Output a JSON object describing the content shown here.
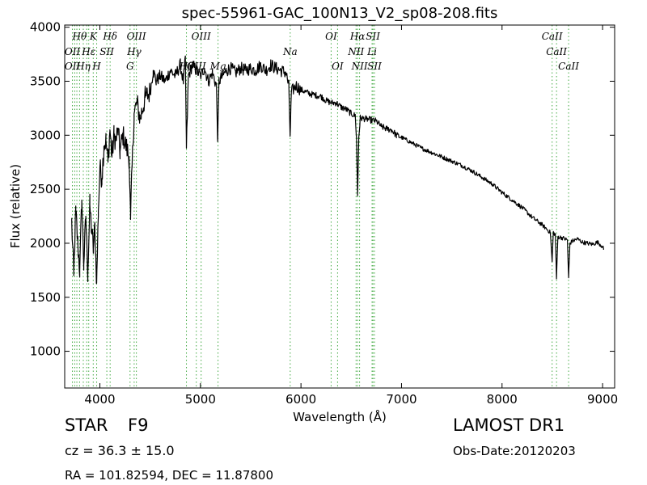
{
  "chart_data": {
    "type": "line",
    "title": "spec-55961-GAC_100N13_V2_sp08-208.fits",
    "xlabel": "Wavelength (Å)",
    "ylabel": "Flux (relative)",
    "xlim": [
      3650,
      9120
    ],
    "ylim": [
      660,
      4020
    ],
    "xticks": [
      4000,
      5000,
      6000,
      7000,
      8000,
      9000
    ],
    "yticks": [
      1000,
      1500,
      2000,
      2500,
      3000,
      3500,
      4000
    ],
    "grid": false,
    "series": [
      {
        "color": "#000000",
        "anchors": [
          [
            3720,
            2200
          ],
          [
            3740,
            1700
          ],
          [
            3760,
            2300
          ],
          [
            3780,
            2000
          ],
          [
            3800,
            1750
          ],
          [
            3820,
            2400
          ],
          [
            3840,
            1800
          ],
          [
            3860,
            2250
          ],
          [
            3880,
            1720
          ],
          [
            3900,
            2350
          ],
          [
            3920,
            2100
          ],
          [
            3935,
            1950
          ],
          [
            3950,
            2150
          ],
          [
            3968,
            1630
          ],
          [
            3985,
            2300
          ],
          [
            4000,
            2700
          ],
          [
            4020,
            2600
          ],
          [
            4040,
            2900
          ],
          [
            4060,
            2950
          ],
          [
            4080,
            2750
          ],
          [
            4100,
            3050
          ],
          [
            4120,
            2800
          ],
          [
            4140,
            3000
          ],
          [
            4160,
            2950
          ],
          [
            4180,
            3050
          ],
          [
            4200,
            2850
          ],
          [
            4230,
            3000
          ],
          [
            4260,
            2900
          ],
          [
            4290,
            2800
          ],
          [
            4305,
            2220
          ],
          [
            4320,
            2700
          ],
          [
            4340,
            3200
          ],
          [
            4370,
            3300
          ],
          [
            4400,
            3150
          ],
          [
            4450,
            3350
          ],
          [
            4500,
            3400
          ],
          [
            4530,
            3600
          ],
          [
            4560,
            3500
          ],
          [
            4600,
            3550
          ],
          [
            4650,
            3500
          ],
          [
            4700,
            3600
          ],
          [
            4750,
            3550
          ],
          [
            4800,
            3650
          ],
          [
            4830,
            3500
          ],
          [
            4850,
            3700
          ],
          [
            4861,
            2880
          ],
          [
            4880,
            3550
          ],
          [
            4920,
            3650
          ],
          [
            4960,
            3600
          ],
          [
            5000,
            3550
          ],
          [
            5040,
            3620
          ],
          [
            5080,
            3500
          ],
          [
            5120,
            3580
          ],
          [
            5160,
            3450
          ],
          [
            5172,
            2940
          ],
          [
            5185,
            3500
          ],
          [
            5220,
            3550
          ],
          [
            5260,
            3600
          ],
          [
            5300,
            3620
          ],
          [
            5350,
            3580
          ],
          [
            5400,
            3620
          ],
          [
            5450,
            3600
          ],
          [
            5500,
            3620
          ],
          [
            5550,
            3600
          ],
          [
            5600,
            3650
          ],
          [
            5650,
            3600
          ],
          [
            5700,
            3650
          ],
          [
            5750,
            3620
          ],
          [
            5800,
            3600
          ],
          [
            5850,
            3580
          ],
          [
            5880,
            3450
          ],
          [
            5892,
            2990
          ],
          [
            5905,
            3400
          ],
          [
            5950,
            3460
          ],
          [
            6000,
            3420
          ],
          [
            6050,
            3400
          ],
          [
            6100,
            3380
          ],
          [
            6150,
            3370
          ],
          [
            6200,
            3360
          ],
          [
            6250,
            3320
          ],
          [
            6300,
            3300
          ],
          [
            6350,
            3300
          ],
          [
            6400,
            3260
          ],
          [
            6450,
            3240
          ],
          [
            6500,
            3200
          ],
          [
            6540,
            3180
          ],
          [
            6552,
            2980
          ],
          [
            6563,
            2440
          ],
          [
            6575,
            2980
          ],
          [
            6590,
            3160
          ],
          [
            6650,
            3150
          ],
          [
            6700,
            3140
          ],
          [
            6750,
            3130
          ],
          [
            6800,
            3080
          ],
          [
            6850,
            3060
          ],
          [
            6900,
            3050
          ],
          [
            6950,
            3000
          ],
          [
            7000,
            2980
          ],
          [
            7100,
            2930
          ],
          [
            7200,
            2880
          ],
          [
            7300,
            2840
          ],
          [
            7400,
            2800
          ],
          [
            7500,
            2760
          ],
          [
            7600,
            2720
          ],
          [
            7700,
            2670
          ],
          [
            7800,
            2610
          ],
          [
            7900,
            2550
          ],
          [
            8000,
            2470
          ],
          [
            8100,
            2400
          ],
          [
            8200,
            2330
          ],
          [
            8300,
            2240
          ],
          [
            8400,
            2170
          ],
          [
            8480,
            2100
          ],
          [
            8498,
            1830
          ],
          [
            8510,
            2100
          ],
          [
            8530,
            2080
          ],
          [
            8542,
            1670
          ],
          [
            8555,
            2060
          ],
          [
            8600,
            2050
          ],
          [
            8650,
            2030
          ],
          [
            8662,
            1680
          ],
          [
            8675,
            2000
          ],
          [
            8700,
            2020
          ],
          [
            8750,
            2040
          ],
          [
            8800,
            2010
          ],
          [
            8850,
            2000
          ],
          [
            8900,
            1990
          ],
          [
            8950,
            2010
          ],
          [
            9000,
            1970
          ],
          [
            9010,
            1940
          ]
        ]
      }
    ],
    "lines": {
      "color": "#44aa44",
      "wavelengths": [
        3727,
        3750,
        3771,
        3798,
        3835,
        3869,
        3889,
        3934,
        3968,
        4069,
        4102,
        4300,
        4341,
        4363,
        4861,
        4959,
        5007,
        5175,
        5893,
        6300,
        6364,
        6548,
        6563,
        6583,
        6707,
        6716,
        6731,
        8498,
        8542,
        8662
      ],
      "labels": [
        {
          "text": "Hθ",
          "x": 3798,
          "row": 1
        },
        {
          "text": "K",
          "x": 3934,
          "row": 1
        },
        {
          "text": "Hδ",
          "x": 4102,
          "row": 1
        },
        {
          "text": "OIII",
          "x": 4363,
          "row": 1
        },
        {
          "text": "OIII",
          "x": 5007,
          "row": 1
        },
        {
          "text": "OI",
          "x": 6300,
          "row": 1
        },
        {
          "text": "Hα",
          "x": 6563,
          "row": 1
        },
        {
          "text": "SII",
          "x": 6716,
          "row": 1
        },
        {
          "text": "CaII",
          "x": 8498,
          "row": 1
        },
        {
          "text": "OII",
          "x": 3727,
          "row": 2
        },
        {
          "text": "Hε",
          "x": 3889,
          "row": 2
        },
        {
          "text": "SII",
          "x": 4069,
          "row": 2
        },
        {
          "text": "Hγ",
          "x": 4341,
          "row": 2
        },
        {
          "text": "Na",
          "x": 5893,
          "row": 2
        },
        {
          "text": "NII",
          "x": 6548,
          "row": 2
        },
        {
          "text": "Li",
          "x": 6707,
          "row": 2
        },
        {
          "text": "CaII",
          "x": 8542,
          "row": 2
        },
        {
          "text": "OII",
          "x": 3727,
          "row": 3
        },
        {
          "text": "Hη",
          "x": 3835,
          "row": 3
        },
        {
          "text": "H",
          "x": 3968,
          "row": 3
        },
        {
          "text": "G",
          "x": 4300,
          "row": 3
        },
        {
          "text": "Hβ",
          "x": 4861,
          "row": 3
        },
        {
          "text": "OIII",
          "x": 4959,
          "row": 3
        },
        {
          "text": "Mg",
          "x": 5175,
          "row": 3
        },
        {
          "text": "OI",
          "x": 6364,
          "row": 3
        },
        {
          "text": "NII",
          "x": 6583,
          "row": 3
        },
        {
          "text": "SII",
          "x": 6731,
          "row": 3
        },
        {
          "text": "CaII",
          "x": 8662,
          "row": 3
        }
      ]
    }
  },
  "info": {
    "class_label": "STAR",
    "subclass": "F9",
    "survey": "LAMOST DR1",
    "redshift_text": "cz = 36.3 ± 15.0",
    "obs_date_text": "Obs-Date:20120203",
    "coords_text": "RA = 101.82594, DEC = 11.87800"
  }
}
